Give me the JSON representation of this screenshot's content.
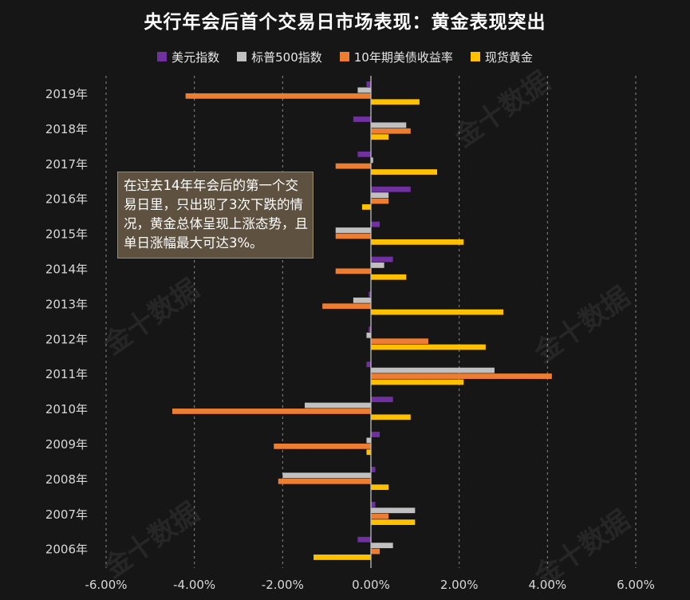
{
  "chart_data": {
    "type": "bar",
    "orientation": "horizontal",
    "title": "央行年会后首个交易日市场表现：黄金表现突出",
    "categories": [
      "2019年",
      "2018年",
      "2017年",
      "2016年",
      "2015年",
      "2014年",
      "2013年",
      "2012年",
      "2011年",
      "2010年",
      "2009年",
      "2008年",
      "2007年",
      "2006年"
    ],
    "series": [
      {
        "name": "美元指数",
        "color": "#7030a0",
        "values": [
          -0.1,
          -0.4,
          -0.3,
          0.9,
          0.2,
          0.5,
          -0.05,
          -0.05,
          -0.1,
          0.5,
          0.2,
          0.1,
          0.1,
          -0.3
        ]
      },
      {
        "name": "标普500指数",
        "color": "#c0c0c0",
        "values": [
          -0.3,
          0.8,
          0.05,
          0.4,
          -0.8,
          0.3,
          -0.4,
          -0.1,
          2.8,
          -1.5,
          -0.1,
          -2.0,
          1.0,
          0.5
        ]
      },
      {
        "name": "10年期美债收益率",
        "color": "#ed7d31",
        "values": [
          -4.2,
          0.9,
          -0.8,
          0.4,
          -0.8,
          -0.8,
          -1.1,
          1.3,
          4.1,
          -4.5,
          -2.2,
          -2.1,
          0.4,
          0.2
        ]
      },
      {
        "name": "现货黄金",
        "color": "#ffc000",
        "values": [
          1.1,
          0.4,
          1.5,
          -0.2,
          2.1,
          0.8,
          3.0,
          2.6,
          2.1,
          0.9,
          -0.1,
          0.4,
          1.0,
          -1.3
        ]
      }
    ],
    "xticks": [
      "-6.00%",
      "-4.00%",
      "-2.00%",
      "0.00%",
      "2.00%",
      "4.00%",
      "6.00%"
    ],
    "xlim": [
      -6,
      6
    ],
    "grid": "vertical dashed",
    "legend": "top"
  },
  "annotation": "在过去14年年会后的第一个交易日里，只出现了3次下跌的情况，黄金总体呈现上涨态势，且单日涨幅最大可达3%。",
  "watermark": "金十数据"
}
